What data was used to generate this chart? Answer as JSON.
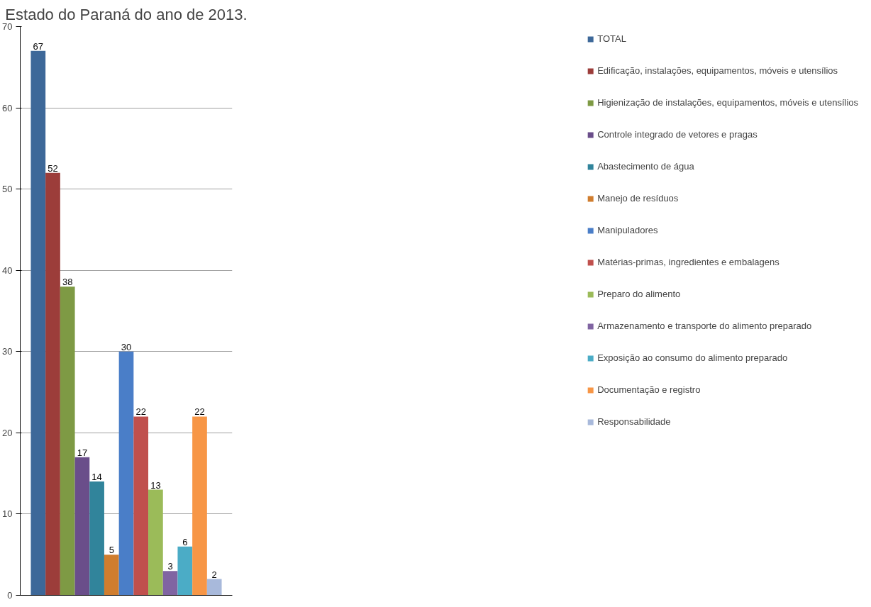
{
  "chart_data": {
    "type": "bar",
    "title": "Estado do Paraná do ano de 2013.",
    "categories": [
      null
    ],
    "series": [
      {
        "name": "TOTAL",
        "color": "#3d6899",
        "values": [
          67
        ]
      },
      {
        "name": "Edificação, instalações, equipamentos, móveis e utensílios",
        "color": "#9c3d3a",
        "values": [
          52
        ]
      },
      {
        "name": "Higienização de instalações, equipamentos, móveis e utensílios",
        "color": "#7e9a44",
        "values": [
          38
        ]
      },
      {
        "name": "Controle integrado de vetores e pragas",
        "color": "#6a4e8a",
        "values": [
          17
        ]
      },
      {
        "name": "Abastecimento de água",
        "color": "#31849b",
        "values": [
          14
        ]
      },
      {
        "name": "Manejo de resíduos",
        "color": "#d07d2e",
        "values": [
          5
        ]
      },
      {
        "name": "Manipuladores",
        "color": "#4a7ec8",
        "values": [
          30
        ]
      },
      {
        "name": "Matérias-primas, ingredientes e embalagens",
        "color": "#c0504d",
        "values": [
          22
        ]
      },
      {
        "name": "Preparo do alimento",
        "color": "#9bbb59",
        "values": [
          13
        ]
      },
      {
        "name": "Armazenamento e transporte do alimento preparado",
        "color": "#8064a2",
        "values": [
          3
        ]
      },
      {
        "name": "Exposição ao consumo do alimento preparado",
        "color": "#4bacc6",
        "values": [
          6
        ]
      },
      {
        "name": "Documentação e registro",
        "color": "#f79646",
        "values": [
          22
        ]
      },
      {
        "name": "Responsabilidade",
        "color": "#a8b9db",
        "values": [
          2
        ]
      }
    ],
    "ylim": [
      0,
      70
    ],
    "yticks": [
      0,
      10,
      20,
      30,
      40,
      50,
      60,
      70
    ],
    "grid": "y",
    "legend": "right",
    "data_labels": true
  }
}
